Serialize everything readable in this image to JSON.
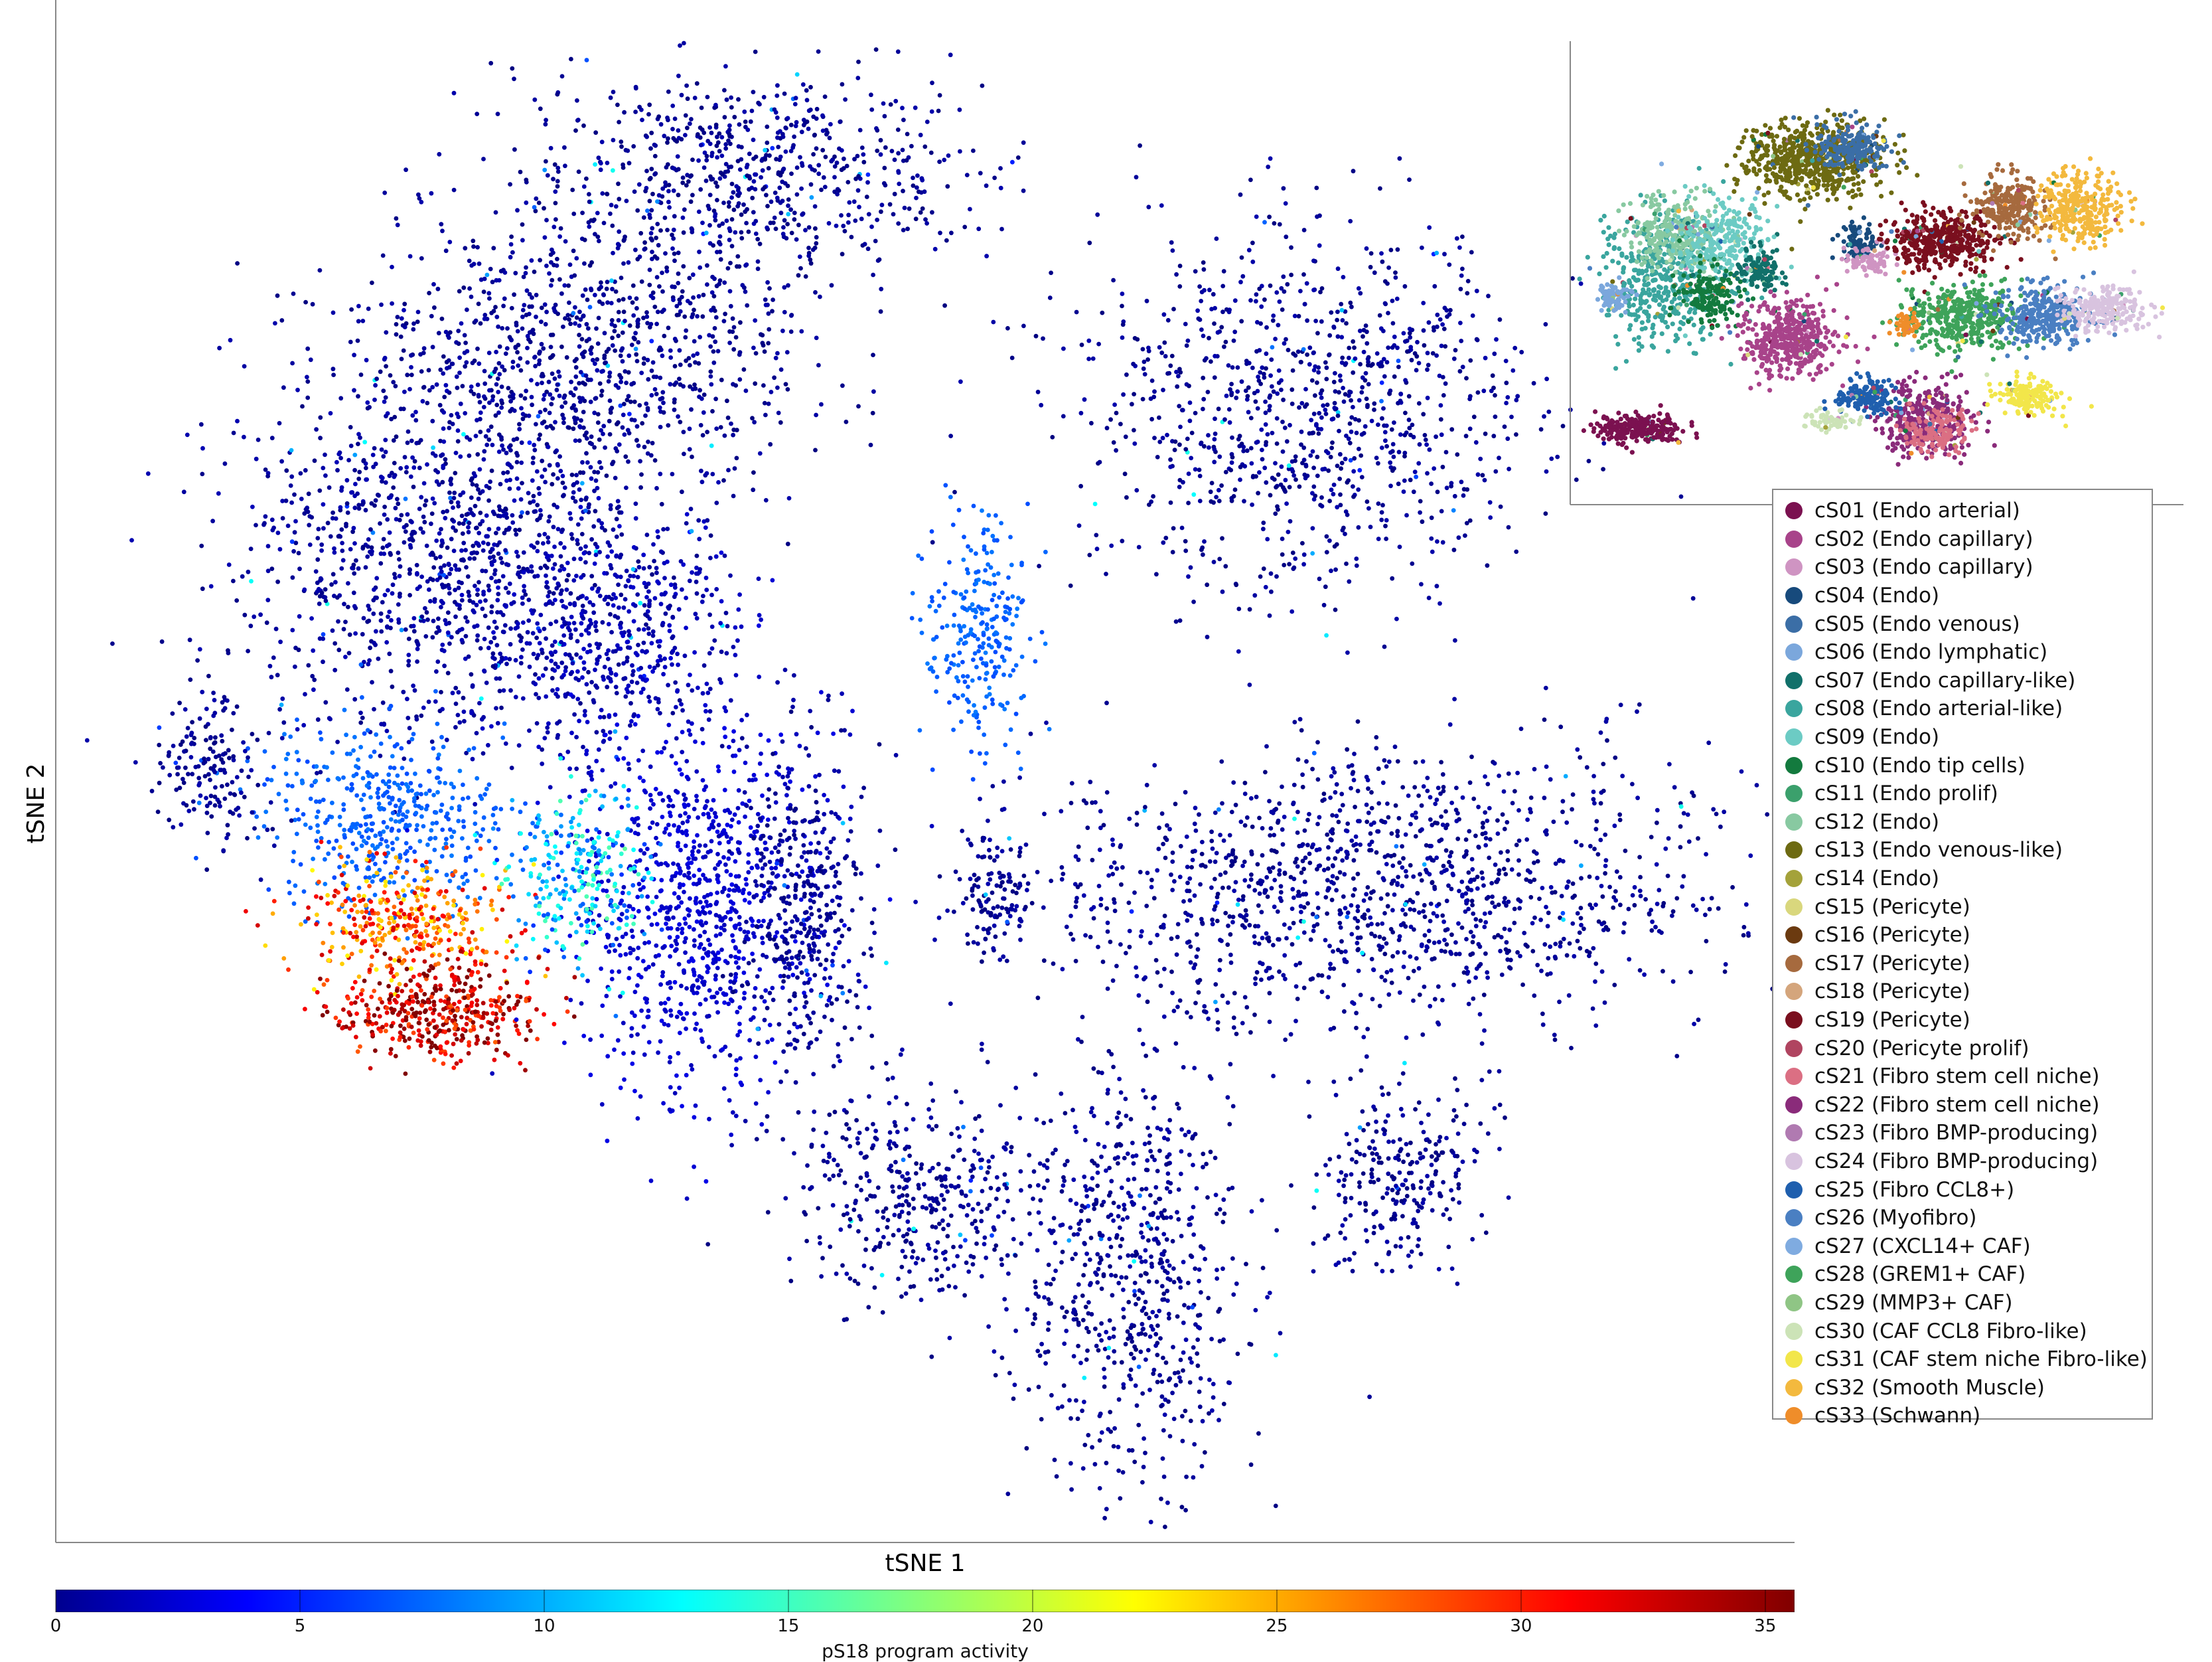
{
  "chart_data": {
    "type": "scatter",
    "xlabel": "tSNE 1",
    "ylabel": "tSNE 2",
    "color_scale": {
      "label": "pS18 program activity",
      "colormap": "jet",
      "range": [
        0,
        35.6
      ],
      "ticks": [
        "0",
        "5",
        "10",
        "15",
        "20",
        "25",
        "30",
        "35"
      ]
    },
    "clusters": [
      {
        "cx": 0.4,
        "cy": 0.9,
        "rx": 0.13,
        "ry": 0.07,
        "n": 700,
        "level": 0.02
      },
      {
        "cx": 0.3,
        "cy": 0.78,
        "rx": 0.13,
        "ry": 0.1,
        "n": 1000,
        "level": 0.02
      },
      {
        "cx": 0.22,
        "cy": 0.65,
        "rx": 0.12,
        "ry": 0.12,
        "n": 1100,
        "level": 0.03
      },
      {
        "cx": 0.32,
        "cy": 0.6,
        "rx": 0.08,
        "ry": 0.08,
        "n": 500,
        "level": 0.05
      },
      {
        "cx": 0.19,
        "cy": 0.48,
        "rx": 0.07,
        "ry": 0.06,
        "n": 450,
        "level": 0.22
      },
      {
        "cx": 0.2,
        "cy": 0.41,
        "rx": 0.06,
        "ry": 0.035,
        "n": 350,
        "level": 0.78
      },
      {
        "cx": 0.22,
        "cy": 0.35,
        "rx": 0.06,
        "ry": 0.03,
        "n": 420,
        "level": 0.93
      },
      {
        "cx": 0.37,
        "cy": 0.42,
        "rx": 0.07,
        "ry": 0.13,
        "n": 900,
        "level": 0.08
      },
      {
        "cx": 0.3,
        "cy": 0.44,
        "rx": 0.04,
        "ry": 0.06,
        "n": 260,
        "level": 0.32
      },
      {
        "cx": 0.43,
        "cy": 0.42,
        "rx": 0.035,
        "ry": 0.1,
        "n": 380,
        "level": 0.02
      },
      {
        "cx": 0.53,
        "cy": 0.6,
        "rx": 0.03,
        "ry": 0.07,
        "n": 260,
        "level": 0.22
      },
      {
        "cx": 0.54,
        "cy": 0.43,
        "rx": 0.02,
        "ry": 0.04,
        "n": 120,
        "level": 0.02
      },
      {
        "cx": 0.09,
        "cy": 0.51,
        "rx": 0.03,
        "ry": 0.05,
        "n": 160,
        "level": 0.02
      },
      {
        "cx": 0.72,
        "cy": 0.75,
        "rx": 0.13,
        "ry": 0.12,
        "n": 1000,
        "level": 0.02
      },
      {
        "cx": 0.76,
        "cy": 0.43,
        "rx": 0.19,
        "ry": 0.09,
        "n": 1300,
        "level": 0.02
      },
      {
        "cx": 0.5,
        "cy": 0.23,
        "rx": 0.08,
        "ry": 0.07,
        "n": 420,
        "level": 0.02
      },
      {
        "cx": 0.62,
        "cy": 0.18,
        "rx": 0.06,
        "ry": 0.15,
        "n": 650,
        "level": 0.02
      },
      {
        "cx": 0.77,
        "cy": 0.24,
        "rx": 0.05,
        "ry": 0.06,
        "n": 260,
        "level": 0.02
      }
    ],
    "legend": [
      {
        "label": "cS01 (Endo arterial)",
        "color": "#7b1150"
      },
      {
        "label": "cS02 (Endo capillary)",
        "color": "#a8438a"
      },
      {
        "label": "cS03 (Endo capillary)",
        "color": "#cf94c2"
      },
      {
        "label": "cS04 (Endo)",
        "color": "#174a7c"
      },
      {
        "label": "cS05 (Endo venous)",
        "color": "#3b6ea6"
      },
      {
        "label": "cS06 (Endo lymphatic)",
        "color": "#7ba7dc"
      },
      {
        "label": "cS07 (Endo capillary-like)",
        "color": "#11706a"
      },
      {
        "label": "cS08 (Endo arterial-like)",
        "color": "#3aa59e"
      },
      {
        "label": "cS09 (Endo)",
        "color": "#6ccbc4"
      },
      {
        "label": "cS10 (Endo tip cells)",
        "color": "#137a3e"
      },
      {
        "label": "cS11 (Endo prolif)",
        "color": "#3ba06c"
      },
      {
        "label": "cS12 (Endo)",
        "color": "#88c9a1"
      },
      {
        "label": "cS13 (Endo venous-like)",
        "color": "#6d6a12"
      },
      {
        "label": "cS14 (Endo)",
        "color": "#a4a23a"
      },
      {
        "label": "cS15 (Pericyte)",
        "color": "#d9d77d"
      },
      {
        "label": "cS16 (Pericyte)",
        "color": "#6b3a10"
      },
      {
        "label": "cS17 (Pericyte)",
        "color": "#a66a3e"
      },
      {
        "label": "cS18 (Pericyte)",
        "color": "#d4a57c"
      },
      {
        "label": "cS19 (Pericyte)",
        "color": "#7a0f1e"
      },
      {
        "label": "cS20 (Pericyte prolif)",
        "color": "#b04460"
      },
      {
        "label": "cS21 (Fibro stem cell niche)",
        "color": "#db6f83"
      },
      {
        "label": "cS22 (Fibro stem cell niche)",
        "color": "#8a2b7a"
      },
      {
        "label": "cS23 (Fibro BMP-producing)",
        "color": "#b07ab1"
      },
      {
        "label": "cS24 (Fibro BMP-producing)",
        "color": "#d8c3df"
      },
      {
        "label": "cS25 (Fibro CCL8+)",
        "color": "#1f5fae"
      },
      {
        "label": "cS26 (Myofibro)",
        "color": "#4a7fc2"
      },
      {
        "label": "cS27 (CXCL14+ CAF)",
        "color": "#7fabe0"
      },
      {
        "label": "cS28 (GREM1+ CAF)",
        "color": "#3ea35a"
      },
      {
        "label": "cS29 (MMP3+ CAF)",
        "color": "#8fc585"
      },
      {
        "label": "cS30 (CAF CCL8 Fibro-like)",
        "color": "#cce3b7"
      },
      {
        "label": "cS31 (CAF stem niche Fibro-like)",
        "color": "#f2e64a"
      },
      {
        "label": "cS32 (Smooth Muscle)",
        "color": "#f3b93e"
      },
      {
        "label": "cS33 (Schwann)",
        "color": "#ef8d2a"
      }
    ],
    "inset": {
      "clusters": [
        {
          "cx": 0.1,
          "cy": 0.1,
          "rx": 0.07,
          "ry": 0.04,
          "n": 260,
          "c": 0
        },
        {
          "cx": 0.14,
          "cy": 0.5,
          "rx": 0.1,
          "ry": 0.18,
          "n": 450,
          "c": 7
        },
        {
          "cx": 0.16,
          "cy": 0.62,
          "rx": 0.08,
          "ry": 0.1,
          "n": 250,
          "c": 11
        },
        {
          "cx": 0.24,
          "cy": 0.6,
          "rx": 0.08,
          "ry": 0.1,
          "n": 250,
          "c": 8
        },
        {
          "cx": 0.22,
          "cy": 0.45,
          "rx": 0.05,
          "ry": 0.08,
          "n": 160,
          "c": 9
        },
        {
          "cx": 0.3,
          "cy": 0.52,
          "rx": 0.04,
          "ry": 0.06,
          "n": 120,
          "c": 6
        },
        {
          "cx": 0.39,
          "cy": 0.82,
          "rx": 0.12,
          "ry": 0.1,
          "n": 600,
          "c": 12
        },
        {
          "cx": 0.46,
          "cy": 0.86,
          "rx": 0.06,
          "ry": 0.07,
          "n": 200,
          "c": 4
        },
        {
          "cx": 0.35,
          "cy": 0.34,
          "rx": 0.08,
          "ry": 0.1,
          "n": 420,
          "c": 1
        },
        {
          "cx": 0.47,
          "cy": 0.6,
          "rx": 0.03,
          "ry": 0.05,
          "n": 90,
          "c": 3
        },
        {
          "cx": 0.48,
          "cy": 0.55,
          "rx": 0.04,
          "ry": 0.04,
          "n": 80,
          "c": 2
        },
        {
          "cx": 0.61,
          "cy": 0.6,
          "rx": 0.09,
          "ry": 0.07,
          "n": 420,
          "c": 18
        },
        {
          "cx": 0.72,
          "cy": 0.69,
          "rx": 0.06,
          "ry": 0.09,
          "n": 250,
          "c": 16
        },
        {
          "cx": 0.84,
          "cy": 0.69,
          "rx": 0.07,
          "ry": 0.1,
          "n": 300,
          "c": 31
        },
        {
          "cx": 0.64,
          "cy": 0.4,
          "rx": 0.1,
          "ry": 0.09,
          "n": 420,
          "c": 27
        },
        {
          "cx": 0.78,
          "cy": 0.4,
          "rx": 0.08,
          "ry": 0.08,
          "n": 300,
          "c": 25
        },
        {
          "cx": 0.88,
          "cy": 0.42,
          "rx": 0.08,
          "ry": 0.06,
          "n": 220,
          "c": 23
        },
        {
          "cx": 0.55,
          "cy": 0.38,
          "rx": 0.02,
          "ry": 0.03,
          "n": 50,
          "c": 32
        },
        {
          "cx": 0.58,
          "cy": 0.12,
          "rx": 0.08,
          "ry": 0.1,
          "n": 350,
          "c": 21
        },
        {
          "cx": 0.6,
          "cy": 0.09,
          "rx": 0.06,
          "ry": 0.05,
          "n": 150,
          "c": 20
        },
        {
          "cx": 0.75,
          "cy": 0.18,
          "rx": 0.05,
          "ry": 0.05,
          "n": 160,
          "c": 30
        },
        {
          "cx": 0.48,
          "cy": 0.18,
          "rx": 0.05,
          "ry": 0.05,
          "n": 160,
          "c": 24
        },
        {
          "cx": 0.42,
          "cy": 0.12,
          "rx": 0.04,
          "ry": 0.03,
          "n": 60,
          "c": 29
        },
        {
          "cx": 0.06,
          "cy": 0.45,
          "rx": 0.03,
          "ry": 0.04,
          "n": 70,
          "c": 5
        }
      ]
    }
  }
}
